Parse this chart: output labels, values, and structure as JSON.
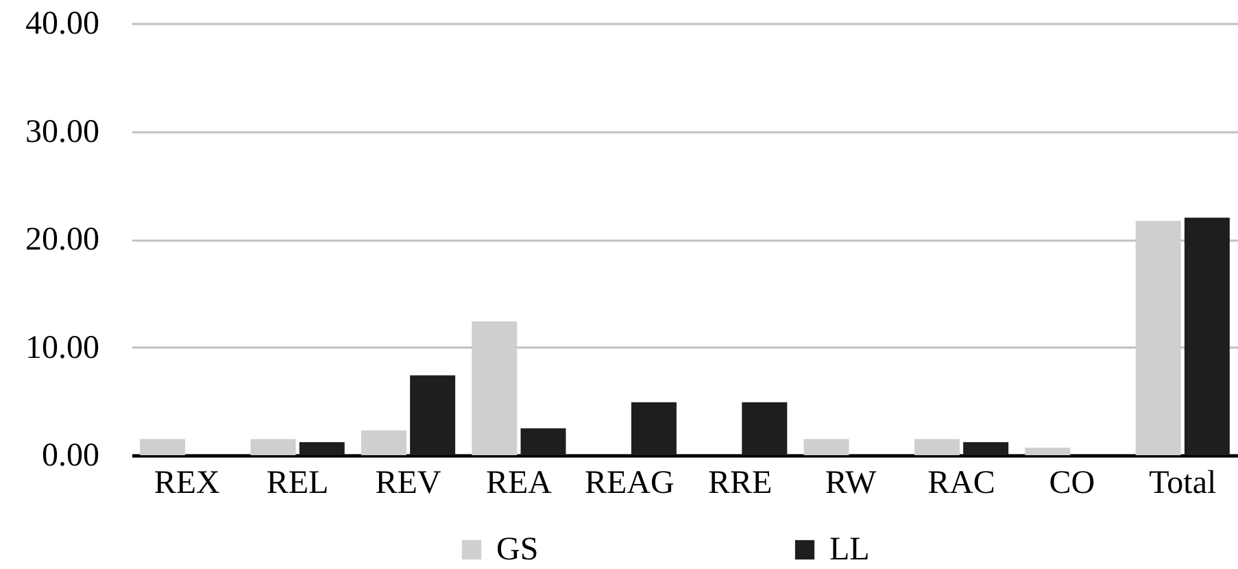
{
  "chart_data": {
    "type": "bar",
    "categories": [
      "REX",
      "REL",
      "REV",
      "REA",
      "REAG",
      "RRE",
      "RW",
      "RAC",
      "CO",
      "Total"
    ],
    "series": [
      {
        "name": "GS",
        "color": "#d0cecf",
        "values": [
          1.5,
          1.5,
          2.3,
          12.4,
          0,
          0,
          1.5,
          1.5,
          0.7,
          21.7
        ]
      },
      {
        "name": "LL",
        "color": "#1e1e1e",
        "values": [
          0,
          1.2,
          7.4,
          2.5,
          4.9,
          4.9,
          0,
          1.2,
          0,
          22.0
        ]
      }
    ],
    "ylim": [
      0,
      40
    ],
    "yticks": [
      {
        "value": 0,
        "label": "0.00"
      },
      {
        "value": 10,
        "label": "10.00"
      },
      {
        "value": 20,
        "label": "20.00"
      },
      {
        "value": 30,
        "label": "30.00"
      },
      {
        "value": 40,
        "label": "40.00"
      }
    ],
    "grid": "y",
    "legend": "bottom"
  }
}
